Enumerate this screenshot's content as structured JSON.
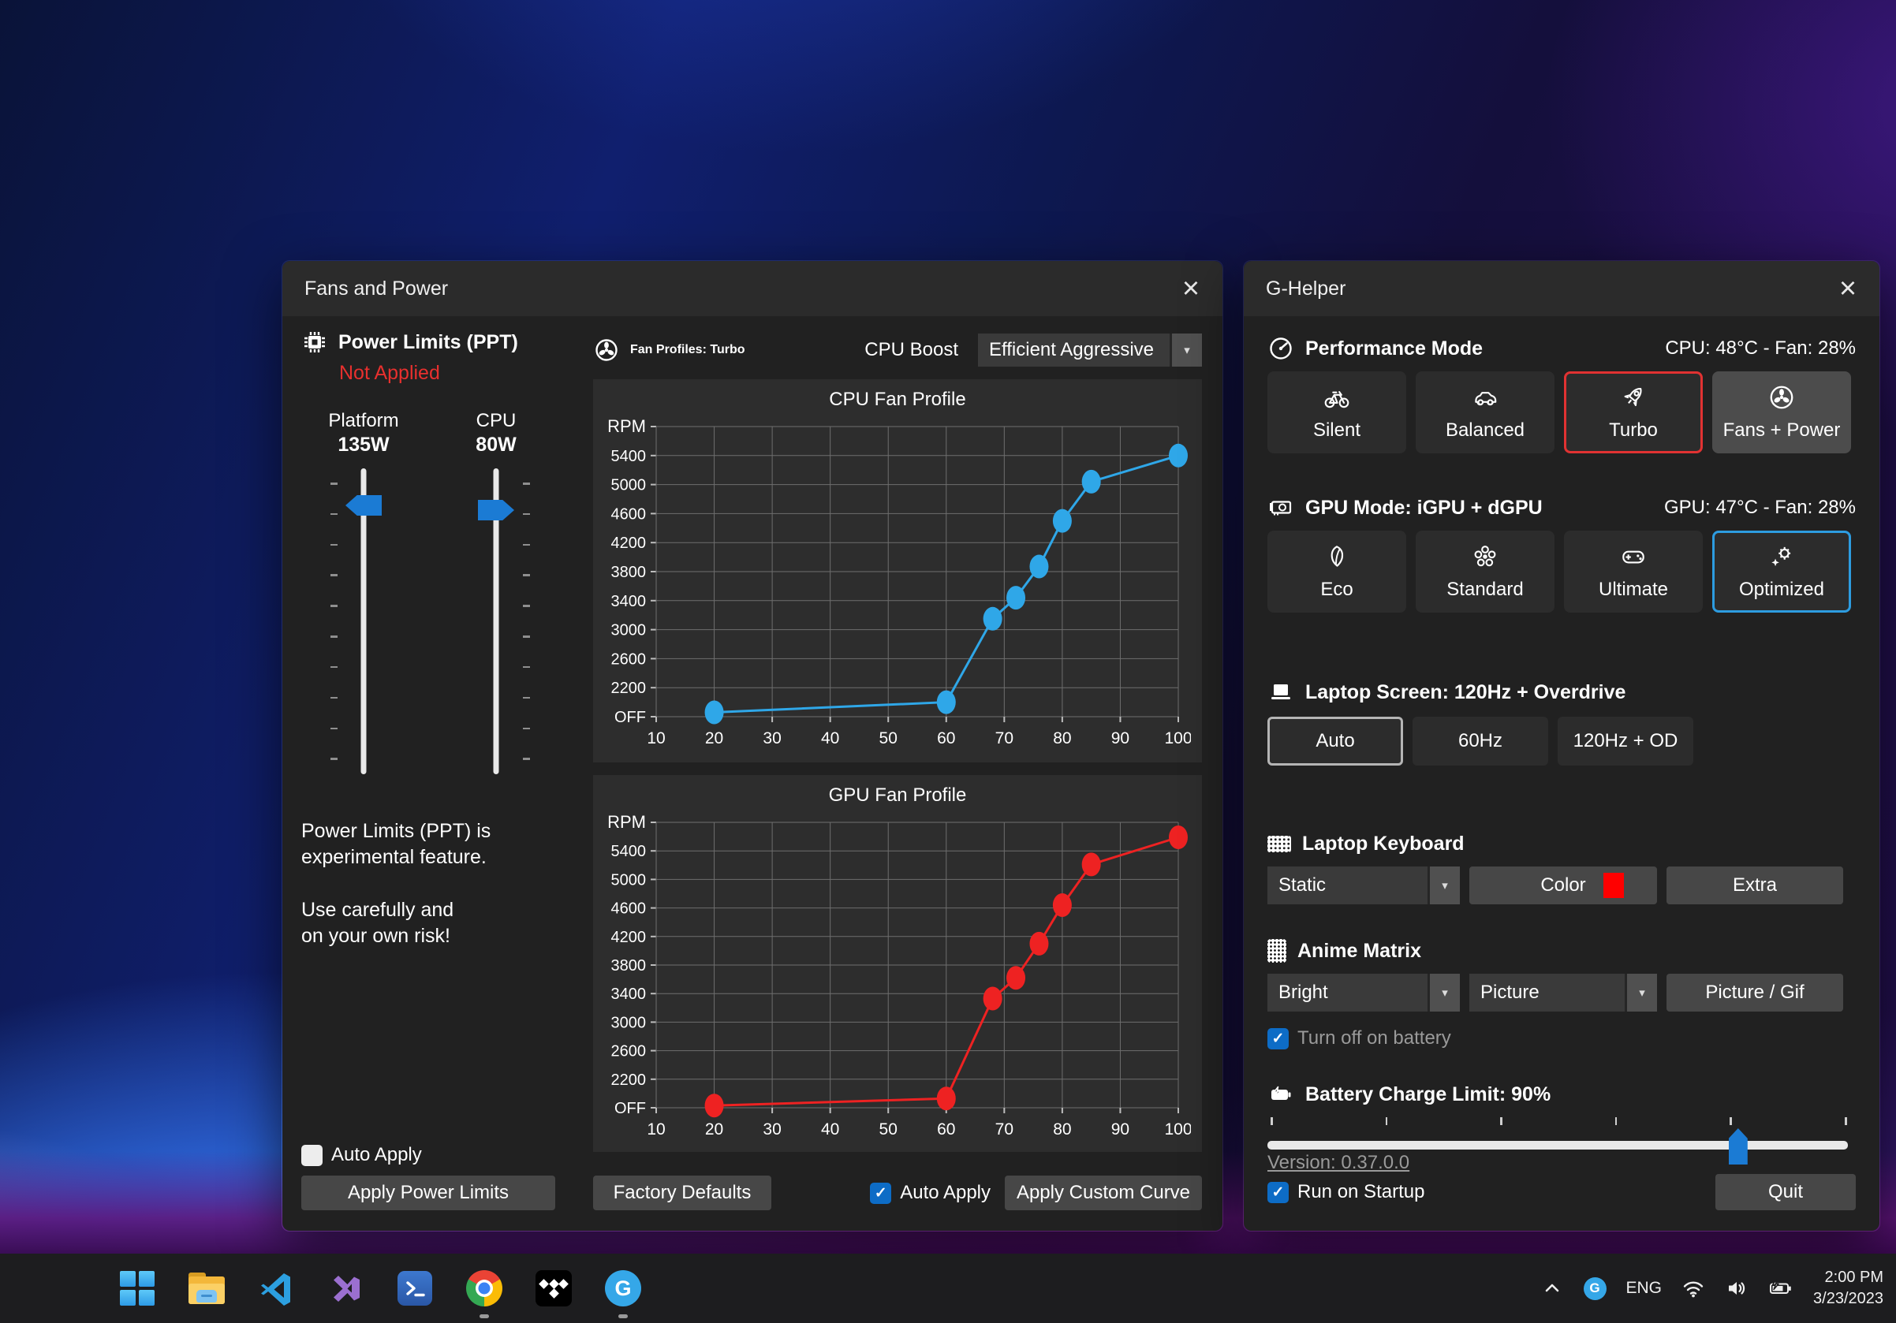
{
  "colors": {
    "accent_blue": "#1b7bd4",
    "status_red": "#e8302e",
    "selected_red_border": "#e13232",
    "selected_blue_border": "#2d9ce0",
    "keyboard_swatch": "#ff0000",
    "window_bg": "#212121",
    "titlebar_bg": "#2b2b2b",
    "panel_bg": "#2d2d2d"
  },
  "fans_window": {
    "title": "Fans and Power",
    "close_glyph": "×",
    "power_limits": {
      "header": "Power Limits (PPT)",
      "status": "Not Applied",
      "status_color": "#e8302e",
      "sliders": [
        {
          "label": "Platform",
          "value": "135W"
        },
        {
          "label": "CPU",
          "value": "80W"
        }
      ],
      "note1": "Power Limits (PPT) is\nexperimental feature.",
      "note2": "Use carefully and\non your own risk!",
      "auto_apply_label": "Auto Apply",
      "auto_apply_checked": false,
      "apply_button": "Apply Power Limits"
    },
    "fan_profiles": {
      "header": "Fan Profiles: Turbo",
      "cpu_boost_label": "CPU Boost",
      "cpu_boost_value": "Efficient Aggressive",
      "factory_defaults": "Factory Defaults",
      "auto_apply_label": "Auto Apply",
      "auto_apply_checked": true,
      "apply_custom_curve": "Apply Custom Curve"
    }
  },
  "chart_data": [
    {
      "type": "line",
      "title": "CPU Fan Profile",
      "y_axis_label": "RPM",
      "xlabel": "",
      "x_range": [
        10,
        100
      ],
      "x_tick_step": 10,
      "y_ticks_labels": [
        "OFF",
        "2200",
        "2600",
        "3000",
        "3400",
        "3800",
        "4200",
        "4600",
        "5000",
        "5400"
      ],
      "y_off_value": 1800,
      "y_top_value": 5800,
      "y_step": 400,
      "grid": true,
      "series_color": "#2fa7e8",
      "points": [
        {
          "temp": 20,
          "rpm": 1860
        },
        {
          "temp": 60,
          "rpm": 2000
        },
        {
          "temp": 68,
          "rpm": 3150
        },
        {
          "temp": 72,
          "rpm": 3440
        },
        {
          "temp": 76,
          "rpm": 3870
        },
        {
          "temp": 80,
          "rpm": 4500
        },
        {
          "temp": 85,
          "rpm": 5040
        },
        {
          "temp": 100,
          "rpm": 5400
        }
      ]
    },
    {
      "type": "line",
      "title": "GPU Fan Profile",
      "y_axis_label": "RPM",
      "xlabel": "",
      "x_range": [
        10,
        100
      ],
      "x_tick_step": 10,
      "y_ticks_labels": [
        "OFF",
        "2200",
        "2600",
        "3000",
        "3400",
        "3800",
        "4200",
        "4600",
        "5000",
        "5400"
      ],
      "y_off_value": 1800,
      "y_top_value": 5800,
      "y_step": 400,
      "grid": true,
      "series_color": "#ee2222",
      "points": [
        {
          "temp": 20,
          "rpm": 1830
        },
        {
          "temp": 60,
          "rpm": 1930
        },
        {
          "temp": 68,
          "rpm": 3330
        },
        {
          "temp": 72,
          "rpm": 3620
        },
        {
          "temp": 76,
          "rpm": 4100
        },
        {
          "temp": 80,
          "rpm": 4640
        },
        {
          "temp": 85,
          "rpm": 5210
        },
        {
          "temp": 100,
          "rpm": 5590
        }
      ]
    }
  ],
  "ghelper_window": {
    "title": "G-Helper",
    "close_glyph": "×",
    "performance": {
      "header": "Performance Mode",
      "status": "CPU: 48°C -  Fan: 28%",
      "buttons": [
        {
          "label": "Silent",
          "icon": "bicycle-icon"
        },
        {
          "label": "Balanced",
          "icon": "car-icon"
        },
        {
          "label": "Turbo",
          "icon": "rocket-icon",
          "selected": true
        },
        {
          "label": "Fans + Power",
          "icon": "fan-icon",
          "highlighted": true
        }
      ]
    },
    "gpu_mode": {
      "header": "GPU Mode: iGPU + dGPU",
      "status": "GPU: 47°C -  Fan: 28%",
      "buttons": [
        {
          "label": "Eco",
          "icon": "leaf-icon"
        },
        {
          "label": "Standard",
          "icon": "flower-icon"
        },
        {
          "label": "Ultimate",
          "icon": "gamepad-icon"
        },
        {
          "label": "Optimized",
          "icon": "optimize-icon",
          "selected": true
        }
      ]
    },
    "screen": {
      "header": "Laptop Screen: 120Hz + Overdrive",
      "buttons": [
        {
          "label": "Auto",
          "selected": true
        },
        {
          "label": "60Hz"
        },
        {
          "label": "120Hz + OD"
        }
      ]
    },
    "keyboard": {
      "header": "Laptop Keyboard",
      "mode_value": "Static",
      "color_button": "Color",
      "swatch_color": "#ff0000",
      "extra_button": "Extra"
    },
    "anime_matrix": {
      "header": "Anime Matrix",
      "brightness_value": "Bright",
      "running_value": "Picture",
      "picture_button": "Picture / Gif",
      "battery_checkbox_label": "Turn off on battery",
      "battery_checkbox_checked": true
    },
    "battery": {
      "header": "Battery Charge Limit: 90%",
      "value": 90,
      "min": 50,
      "max": 100,
      "tick_values": [
        50,
        60,
        70,
        80,
        90,
        100
      ]
    },
    "version_link": "Version: 0.37.0.0",
    "startup_label": "Run on Startup",
    "startup_checked": true,
    "quit_button": "Quit"
  },
  "taskbar": {
    "pinned": [
      {
        "icon": "start-icon"
      },
      {
        "icon": "file-explorer-icon"
      },
      {
        "icon": "vscode-icon"
      },
      {
        "icon": "visual-studio-icon"
      },
      {
        "icon": "terminal-icon"
      },
      {
        "icon": "chrome-icon",
        "running": true
      },
      {
        "icon": "tidal-icon"
      },
      {
        "icon": "g-helper-icon",
        "running": true
      }
    ],
    "tray": {
      "language": "ENG",
      "time": "2:00 PM",
      "date": "3/23/2023"
    }
  }
}
